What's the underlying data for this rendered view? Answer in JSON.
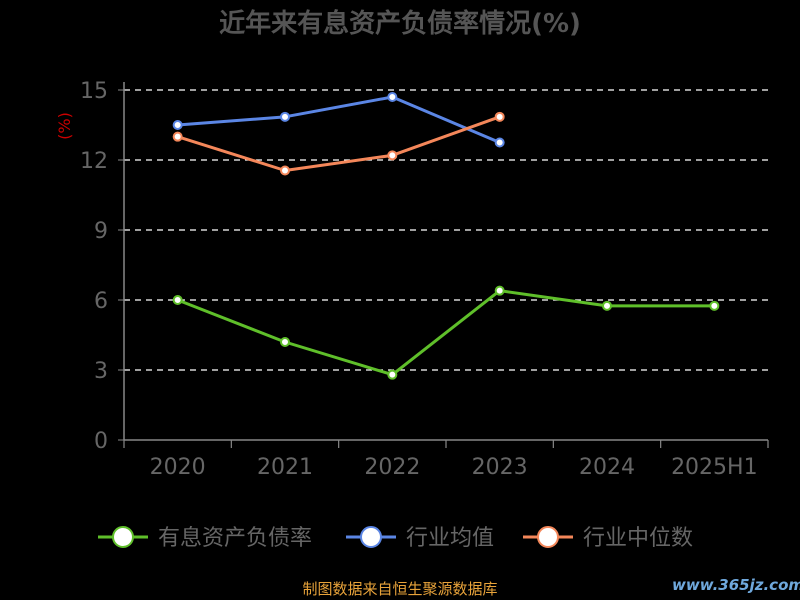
{
  "chart_data": {
    "type": "line",
    "title": "近年来有息资产负债率情况(%)",
    "ylabel": "(%)",
    "categories": [
      "2020",
      "2021",
      "2022",
      "2023",
      "2024",
      "2025H1"
    ],
    "yticks": [
      "0",
      "3",
      "6",
      "9",
      "12",
      "15"
    ],
    "ylim": [
      0,
      15
    ],
    "grid": true,
    "legend_position": "bottom",
    "series": [
      {
        "name": "有息资产负债率",
        "color": "#5fbf2a",
        "values": [
          6.0,
          4.2,
          2.8,
          6.4,
          5.75,
          5.75
        ]
      },
      {
        "name": "行业均值",
        "color": "#5b86e5",
        "values": [
          13.5,
          13.85,
          14.7,
          12.75,
          null,
          null
        ]
      },
      {
        "name": "行业中位数",
        "color": "#f4875a",
        "values": [
          13.0,
          11.55,
          12.2,
          13.85,
          null,
          null
        ]
      }
    ]
  },
  "footer": {
    "source": "制图数据来自恒生聚源数据库",
    "watermark": "www.365jz.com"
  },
  "colors": {
    "axis": "#888888",
    "grid": "#ffffff",
    "text": "#666666",
    "ylabel": "#cc0000",
    "source": "#e8a33a",
    "watermark": "#6fa8dc"
  }
}
